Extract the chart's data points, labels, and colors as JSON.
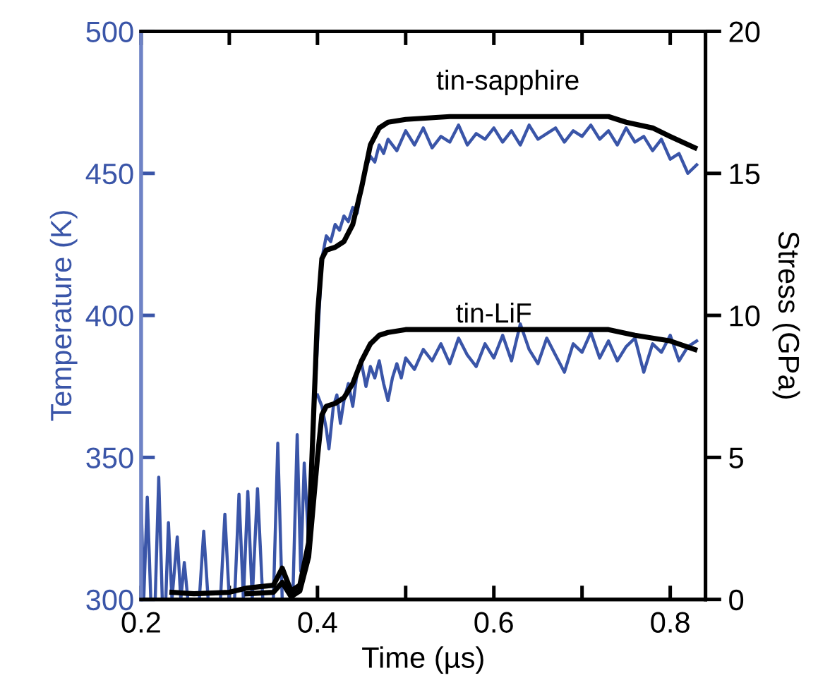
{
  "chart_data": {
    "type": "line",
    "xlabel": "Time (µs)",
    "ylabel": "Temperature (K)",
    "y2label": "Stress (GPa)",
    "xlim": [
      0.2,
      0.84
    ],
    "xticks": [
      0.2,
      {
        "value": 0.3,
        "label": null
      },
      0.4,
      {
        "value": 0.5,
        "label": null
      },
      0.6,
      {
        "value": 0.7,
        "label": null
      },
      0.8
    ],
    "ylim": [
      300,
      500
    ],
    "yticks": [
      300,
      350,
      400,
      450,
      500
    ],
    "y2lim": [
      0,
      20
    ],
    "y2ticks": [
      0,
      5,
      10,
      15,
      20
    ],
    "grid": false,
    "legend": false,
    "marker": "none",
    "line_style": "solid",
    "annotations": [
      "tin-sapphire",
      "tin-LiF"
    ],
    "series": [
      {
        "color": "#3a55a8",
        "axis": "y",
        "x": [
          0.2,
          0.203,
          0.207,
          0.211,
          0.216,
          0.22,
          0.224,
          0.228,
          0.231,
          0.235,
          0.241,
          0.245,
          0.249,
          0.253,
          0.266,
          0.271,
          0.276,
          0.29,
          0.295,
          0.3,
          0.306,
          0.311,
          0.316,
          0.321,
          0.326,
          0.332,
          0.338,
          0.35,
          0.355,
          0.36,
          0.372,
          0.377,
          0.381,
          0.385,
          0.39,
          0.396,
          0.4,
          0.405,
          0.41,
          0.415,
          0.42,
          0.425,
          0.43,
          0.435,
          0.44,
          0.445,
          0.45,
          0.455,
          0.46,
          0.465,
          0.47,
          0.475,
          0.48,
          0.49,
          0.5,
          0.51,
          0.52,
          0.53,
          0.54,
          0.55,
          0.56,
          0.57,
          0.58,
          0.59,
          0.6,
          0.61,
          0.62,
          0.63,
          0.64,
          0.65,
          0.66,
          0.67,
          0.68,
          0.69,
          0.7,
          0.71,
          0.72,
          0.73,
          0.74,
          0.75,
          0.76,
          0.77,
          0.78,
          0.79,
          0.8,
          0.81,
          0.82,
          0.83
        ],
        "values": [
          335,
          300,
          336,
          300,
          300,
          343,
          300,
          300,
          327,
          300,
          322,
          300,
          313,
          300,
          300,
          324,
          300,
          300,
          330,
          300,
          300,
          337,
          300,
          338,
          300,
          339,
          300,
          300,
          355,
          300,
          300,
          358,
          310,
          348,
          320,
          366,
          390,
          420,
          428,
          426,
          432,
          430,
          435,
          433,
          438,
          436,
          445,
          452,
          456,
          454,
          460,
          457,
          462,
          458,
          465,
          460,
          466,
          459,
          463,
          461,
          467,
          460,
          464,
          462,
          466,
          461,
          465,
          460,
          467,
          462,
          464,
          466,
          461,
          465,
          463,
          467,
          462,
          465,
          460,
          466,
          461,
          463,
          458,
          462,
          455,
          457,
          450,
          453
        ]
      },
      {
        "color": "#3a55a8",
        "axis": "y",
        "x": [
          0.4,
          0.405,
          0.41,
          0.413,
          0.418,
          0.422,
          0.426,
          0.43,
          0.435,
          0.44,
          0.445,
          0.45,
          0.455,
          0.46,
          0.465,
          0.47,
          0.475,
          0.48,
          0.485,
          0.49,
          0.495,
          0.5,
          0.51,
          0.52,
          0.53,
          0.54,
          0.55,
          0.56,
          0.57,
          0.58,
          0.59,
          0.6,
          0.61,
          0.62,
          0.63,
          0.64,
          0.65,
          0.66,
          0.67,
          0.68,
          0.69,
          0.7,
          0.71,
          0.72,
          0.73,
          0.74,
          0.75,
          0.76,
          0.77,
          0.78,
          0.79,
          0.8,
          0.81,
          0.82,
          0.83
        ],
        "values": [
          372,
          368,
          360,
          353,
          368,
          372,
          362,
          370,
          376,
          368,
          380,
          383,
          375,
          382,
          378,
          384,
          376,
          370,
          378,
          383,
          378,
          385,
          381,
          388,
          384,
          390,
          383,
          392,
          386,
          382,
          390,
          385,
          393,
          384,
          397,
          388,
          383,
          392,
          386,
          380,
          390,
          387,
          394,
          385,
          391,
          384,
          389,
          392,
          380,
          390,
          387,
          393,
          384,
          389,
          391
        ]
      },
      {
        "color": "#000000",
        "axis": "y2",
        "x": [
          0.235,
          0.26,
          0.3,
          0.32,
          0.35,
          0.36,
          0.37,
          0.38,
          0.39,
          0.395,
          0.4,
          0.405,
          0.41,
          0.42,
          0.43,
          0.44,
          0.45,
          0.46,
          0.47,
          0.48,
          0.5,
          0.55,
          0.6,
          0.65,
          0.7,
          0.73,
          0.75,
          0.78,
          0.8,
          0.828
        ],
        "values": [
          0.25,
          0.2,
          0.25,
          0.4,
          0.5,
          1.1,
          0.3,
          0.5,
          2,
          6,
          10,
          12,
          12.3,
          12.4,
          12.6,
          13.2,
          14.5,
          16,
          16.6,
          16.8,
          16.9,
          17.0,
          17.0,
          17.0,
          17.0,
          17.0,
          16.8,
          16.6,
          16.3,
          15.9
        ]
      },
      {
        "color": "#000000",
        "axis": "y2",
        "x": [
          0.32,
          0.35,
          0.36,
          0.37,
          0.38,
          0.39,
          0.4,
          0.405,
          0.41,
          0.42,
          0.43,
          0.44,
          0.45,
          0.46,
          0.47,
          0.48,
          0.5,
          0.6,
          0.73,
          0.76,
          0.8,
          0.828
        ],
        "values": [
          0.2,
          0.25,
          0.6,
          0.1,
          0.3,
          1.5,
          5,
          6.5,
          6.8,
          6.9,
          7.1,
          7.6,
          8.4,
          9.0,
          9.3,
          9.4,
          9.5,
          9.5,
          9.5,
          9.3,
          9.1,
          8.8
        ]
      }
    ]
  }
}
